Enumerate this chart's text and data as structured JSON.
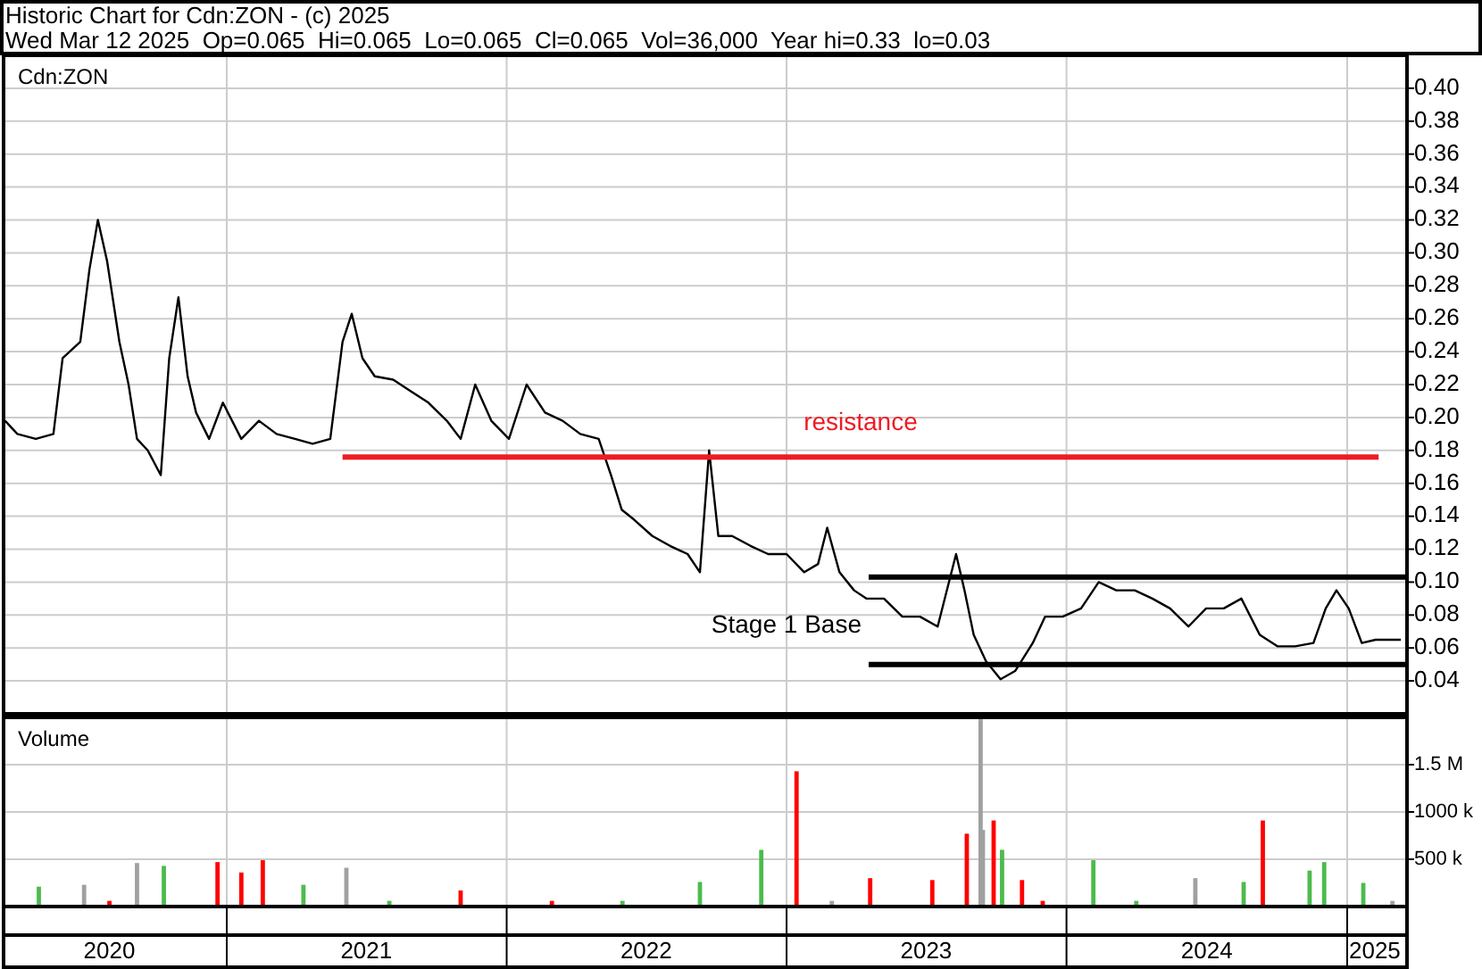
{
  "chart_data": [
    {
      "type": "line",
      "title": "Historic Chart for Cdn:ZON - (c) 2025",
      "subtitle": "Wed Mar 12 2025  Op=0.065  Hi=0.065  Lo=0.065  Cl=0.065  Vol=36,000  Year hi=0.33  lo=0.03",
      "series": [
        {
          "name": "Cdn:ZON",
          "color": "#000000",
          "x": [
            "2020-03-18",
            "2020-04-03",
            "2020-04-27",
            "2020-05-20",
            "2020-06-01",
            "2020-06-24",
            "2020-07-06",
            "2020-07-17",
            "2020-07-29",
            "2020-08-14",
            "2020-08-26",
            "2020-09-06",
            "2020-09-20",
            "2020-10-07",
            "2020-10-18",
            "2020-10-30",
            "2020-11-11",
            "2020-11-22",
            "2020-12-09",
            "2020-12-27",
            "2021-01-20",
            "2021-02-12",
            "2021-03-07",
            "2021-03-31",
            "2021-04-23",
            "2021-05-16",
            "2021-06-01",
            "2021-06-13",
            "2021-06-27",
            "2021-07-13",
            "2021-08-06",
            "2021-08-29",
            "2021-09-21",
            "2021-10-15",
            "2021-11-02",
            "2021-11-21",
            "2021-12-12",
            "2022-01-04",
            "2022-01-27",
            "2022-02-20",
            "2022-03-15",
            "2022-04-07",
            "2022-05-01",
            "2022-05-17",
            "2022-05-31",
            "2022-06-16",
            "2022-07-10",
            "2022-08-02",
            "2022-08-25",
            "2022-09-10",
            "2022-09-22",
            "2022-10-04",
            "2022-10-22",
            "2022-11-15",
            "2022-12-08",
            "2023-01-01",
            "2023-01-24",
            "2023-02-11",
            "2023-02-23",
            "2023-03-11",
            "2023-03-30",
            "2023-04-15",
            "2023-05-08",
            "2023-06-01",
            "2023-06-24",
            "2023-07-17",
            "2023-08-10",
            "2023-08-21",
            "2023-09-02",
            "2023-09-18",
            "2023-10-07",
            "2023-10-26",
            "2023-11-18",
            "2023-12-04",
            "2023-12-27",
            "2024-01-20",
            "2024-02-12",
            "2024-03-06",
            "2024-03-30",
            "2024-04-22",
            "2024-05-15",
            "2024-06-08",
            "2024-07-01",
            "2024-07-24",
            "2024-08-16",
            "2024-09-09",
            "2024-10-02",
            "2024-10-25",
            "2024-11-18",
            "2024-12-04",
            "2024-12-18",
            "2025-01-03",
            "2025-01-20",
            "2025-02-07",
            "2025-03-03",
            "2025-03-12"
          ],
          "values": [
            0.198,
            0.19,
            0.187,
            0.19,
            0.236,
            0.246,
            0.29,
            0.32,
            0.295,
            0.246,
            0.22,
            0.187,
            0.18,
            0.165,
            0.236,
            0.273,
            0.225,
            0.203,
            0.187,
            0.209,
            0.187,
            0.198,
            0.19,
            0.187,
            0.184,
            0.187,
            0.246,
            0.263,
            0.236,
            0.225,
            0.223,
            0.216,
            0.209,
            0.198,
            0.187,
            0.22,
            0.198,
            0.187,
            0.22,
            0.203,
            0.198,
            0.19,
            0.187,
            0.165,
            0.144,
            0.138,
            0.128,
            0.122,
            0.117,
            0.106,
            0.18,
            0.128,
            0.128,
            0.122,
            0.117,
            0.117,
            0.106,
            0.111,
            0.133,
            0.106,
            0.095,
            0.09,
            0.09,
            0.079,
            0.079,
            0.073,
            0.117,
            0.095,
            0.068,
            0.052,
            0.041,
            0.046,
            0.063,
            0.079,
            0.079,
            0.084,
            0.1,
            0.095,
            0.095,
            0.09,
            0.084,
            0.073,
            0.084,
            0.084,
            0.09,
            0.068,
            0.061,
            0.061,
            0.063,
            0.084,
            0.095,
            0.084,
            0.063,
            0.065,
            0.065,
            0.065
          ]
        },
        {
          "color": "#ed1c24",
          "x": [
            "2021-06-01",
            "2025-02-11"
          ],
          "values": [
            0.176,
            0.176
          ]
        },
        {
          "color": "#000000",
          "x": [
            "2023-04-18",
            "2025-03-20"
          ],
          "values": [
            0.103,
            0.103
          ]
        },
        {
          "color": "#000000",
          "x": [
            "2023-04-18",
            "2025-03-20"
          ],
          "values": [
            0.05,
            0.05
          ]
        }
      ],
      "annotations": [
        "resistance",
        "Stage 1 Base"
      ],
      "xlim": [
        "2020-03-16",
        "2025-03-20"
      ],
      "xticks": [
        {
          "value": "2021-01-01",
          "label": null
        },
        {
          "value": "2022-01-01",
          "label": null
        },
        {
          "value": "2023-01-01",
          "label": null
        },
        {
          "value": "2024-01-01",
          "label": null
        },
        {
          "value": "2025-01-01",
          "label": null
        }
      ],
      "ylim": [
        0.02,
        0.42
      ],
      "yticks": [
        0.04,
        0.06,
        0.08,
        {
          "value": 0.1,
          "label": "0.10"
        },
        0.12,
        0.14,
        0.16,
        0.18,
        {
          "value": 0.2,
          "label": "0.20"
        },
        0.22,
        0.24,
        0.26,
        0.28,
        {
          "value": 0.3,
          "label": "0.30"
        },
        0.32,
        0.34,
        0.36,
        0.38,
        {
          "value": 0.4,
          "label": "0.40"
        }
      ],
      "grid": true,
      "tick_labels": "y"
    },
    {
      "type": "bar",
      "series": [
        {
          "name": "Volume",
          "x": [
            "2020-05-01",
            "2020-06-29",
            "2020-08-01",
            "2020-09-06",
            "2020-10-11",
            "2020-12-20",
            "2021-01-20",
            "2021-02-17",
            "2021-04-11",
            "2021-06-06",
            "2021-08-01",
            "2021-11-02",
            "2022-03-01",
            "2022-06-01",
            "2022-09-10",
            "2022-11-29",
            "2023-01-14",
            "2023-03-01",
            "2023-04-20",
            "2023-07-10",
            "2023-08-24",
            "2023-09-11",
            "2023-09-14",
            "2023-09-28",
            "2023-10-09",
            "2023-11-04",
            "2023-12-01",
            "2024-02-05",
            "2024-04-01",
            "2024-06-17",
            "2024-08-19",
            "2024-09-13",
            "2024-11-13",
            "2024-12-02",
            "2025-01-22",
            "2025-03-01"
          ],
          "values": [
            210000,
            230000,
            60000,
            460000,
            430000,
            470000,
            360000,
            490000,
            230000,
            410000,
            60000,
            170000,
            60000,
            60000,
            260000,
            600000,
            1430000,
            60000,
            300000,
            280000,
            770000,
            1980000,
            810000,
            910000,
            600000,
            280000,
            60000,
            490000,
            60000,
            300000,
            260000,
            910000,
            380000,
            470000,
            250000,
            60000
          ],
          "colors": [
            "#4cbb4c",
            "#a0a0a0",
            "#ff0000",
            "#a0a0a0",
            "#4cbb4c",
            "#ff0000",
            "#ff0000",
            "#ff0000",
            "#4cbb4c",
            "#a0a0a0",
            "#4cbb4c",
            "#ff0000",
            "#ff0000",
            "#4cbb4c",
            "#4cbb4c",
            "#4cbb4c",
            "#ff0000",
            "#a0a0a0",
            "#ff0000",
            "#ff0000",
            "#ff0000",
            "#a0a0a0",
            "#a0a0a0",
            "#ff0000",
            "#4cbb4c",
            "#ff0000",
            "#ff0000",
            "#4cbb4c",
            "#4cbb4c",
            "#a0a0a0",
            "#4cbb4c",
            "#ff0000",
            "#4cbb4c",
            "#4cbb4c",
            "#4cbb4c",
            "#a0a0a0"
          ]
        }
      ],
      "xlim": [
        "2020-03-16",
        "2025-03-20"
      ],
      "xticks": [
        {
          "value": "2020-08-01",
          "label": "2020"
        },
        {
          "value": "2021-01-01",
          "label": null
        },
        {
          "value": "2021-07-02",
          "label": "2021"
        },
        {
          "value": "2022-01-01",
          "label": null
        },
        {
          "value": "2022-07-02",
          "label": "2022"
        },
        {
          "value": "2023-01-01",
          "label": null
        },
        {
          "value": "2023-07-02",
          "label": "2023"
        },
        {
          "value": "2024-01-01",
          "label": null
        },
        {
          "value": "2024-07-02",
          "label": "2024"
        },
        {
          "value": "2025-01-01",
          "label": null
        },
        {
          "value": "2025-02-06",
          "label": "2025"
        }
      ],
      "ylim": [
        0,
        2000000
      ],
      "yticks": [
        {
          "value": 500000,
          "label": "500 k"
        },
        {
          "value": 1000000,
          "label": "1000 k"
        },
        {
          "value": 1500000,
          "label": "1.5 M"
        }
      ],
      "grid": true
    }
  ]
}
